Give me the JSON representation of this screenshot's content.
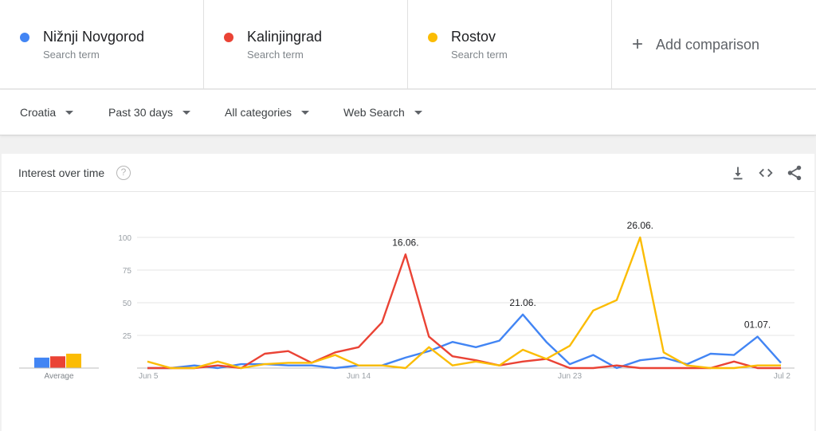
{
  "terms": [
    {
      "name": "Nižnji Novgorod",
      "sub": "Search term",
      "color": "#4285f4"
    },
    {
      "name": "Kalinjingrad",
      "sub": "Search term",
      "color": "#ea4335"
    },
    {
      "name": "Rostov",
      "sub": "Search term",
      "color": "#fbbc04"
    }
  ],
  "add_comparison": {
    "icon": "plus-icon",
    "label": "Add comparison"
  },
  "filters": {
    "region": "Croatia",
    "period": "Past 30 days",
    "category": "All categories",
    "search_type": "Web Search"
  },
  "card": {
    "title": "Interest over time",
    "help_glyph": "?",
    "icons": [
      "download-icon",
      "embed-icon",
      "share-icon"
    ]
  },
  "chart_data": {
    "type": "line",
    "x": [
      "Jun 5",
      "Jun 6",
      "Jun 7",
      "Jun 8",
      "Jun 9",
      "Jun 10",
      "Jun 11",
      "Jun 12",
      "Jun 13",
      "Jun 14",
      "Jun 15",
      "Jun 16",
      "Jun 17",
      "Jun 18",
      "Jun 19",
      "Jun 20",
      "Jun 21",
      "Jun 22",
      "Jun 23",
      "Jun 24",
      "Jun 25",
      "Jun 26",
      "Jun 27",
      "Jun 28",
      "Jun 29",
      "Jun 30",
      "Jul 1",
      "Jul 2"
    ],
    "x_ticks": [
      "Jun 5",
      "Jun 14",
      "Jun 23",
      "Jul 2"
    ],
    "y_ticks": [
      25,
      50,
      75,
      100
    ],
    "ylim": [
      0,
      100
    ],
    "series": [
      {
        "name": "Nižnji Novgorod",
        "color": "#4285f4",
        "values": [
          0,
          0,
          2,
          0,
          3,
          3,
          2,
          2,
          0,
          2,
          2,
          8,
          13,
          20,
          16,
          21,
          41,
          20,
          3,
          10,
          0,
          6,
          8,
          3,
          11,
          10,
          24,
          4
        ]
      },
      {
        "name": "Kalinjingrad",
        "color": "#ea4335",
        "values": [
          0,
          0,
          0,
          2,
          0,
          11,
          13,
          4,
          12,
          16,
          35,
          87,
          24,
          9,
          6,
          2,
          5,
          7,
          0,
          0,
          2,
          0,
          0,
          0,
          0,
          5,
          0,
          0
        ]
      },
      {
        "name": "Rostov",
        "color": "#fbbc04",
        "values": [
          5,
          0,
          0,
          5,
          0,
          3,
          4,
          4,
          10,
          2,
          2,
          0,
          16,
          2,
          5,
          2,
          14,
          7,
          17,
          44,
          52,
          100,
          12,
          2,
          0,
          0,
          2,
          2
        ]
      }
    ],
    "annotations": [
      {
        "x": "Jun 16",
        "label": "16.06.",
        "series": 1
      },
      {
        "x": "Jun 21",
        "label": "21.06.",
        "series": 0
      },
      {
        "x": "Jun 26",
        "label": "26.06.",
        "series": 2
      },
      {
        "x": "Jul 1",
        "label": "01.07.",
        "series": 0
      }
    ],
    "average": {
      "label": "Average",
      "values": [
        8,
        9,
        11
      ]
    }
  }
}
